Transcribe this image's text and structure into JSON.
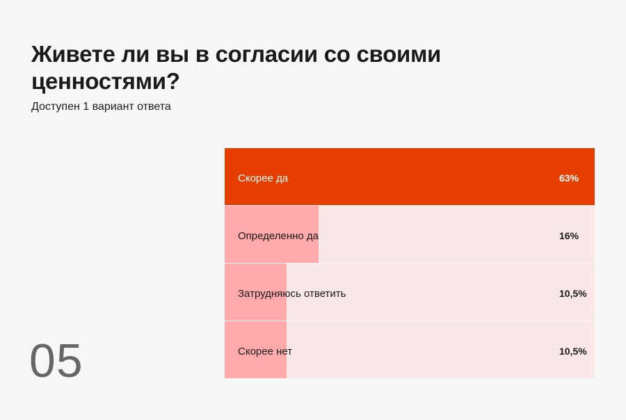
{
  "title": "Живете ли вы в согласии со своими ценностями?",
  "subtitle": "Доступен 1 вариант ответа",
  "question_number": "05",
  "colors": {
    "top": "#e53e00",
    "fill": "#ffaaaa",
    "track": "#fae8e8"
  },
  "chart_data": {
    "type": "bar",
    "orientation": "horizontal",
    "categories": [
      "Скорее да",
      "Определенно да",
      "Затрудняюсь ответить",
      "Скорее нет"
    ],
    "values": [
      63,
      16,
      10.5,
      10.5
    ],
    "labels": [
      "63%",
      "16%",
      "10,5%",
      "10,5%"
    ],
    "title": "",
    "xlabel": "",
    "ylabel": ""
  }
}
